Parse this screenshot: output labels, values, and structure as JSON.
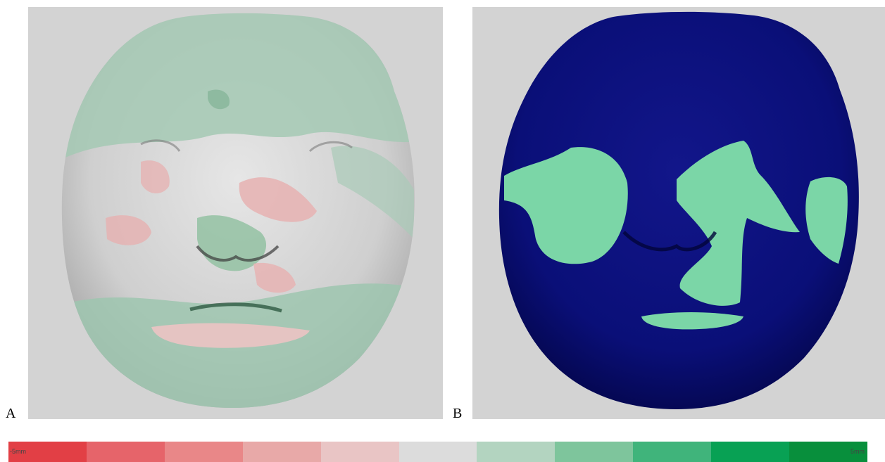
{
  "panels": {
    "a": {
      "label": "A"
    },
    "b": {
      "label": "B"
    }
  },
  "colors": {
    "background": "#d3d3d3",
    "skin_neutral": "#dcdcdc",
    "deviation_green": "#9dc6ae",
    "deviation_red": "#e5b3b3",
    "mask_blue": "#0a0f78",
    "mask_green": "#7bd6a7"
  },
  "color_scale": {
    "min_label": "-5mm",
    "max_label": "5mm",
    "colors": [
      "#e23f45",
      "#e6646a",
      "#e98788",
      "#e8a9a8",
      "#e9c5c5",
      "#dcdcdc",
      "#b3d4c0",
      "#7ec59c",
      "#40b47b",
      "#08a154",
      "#088f3c"
    ]
  }
}
